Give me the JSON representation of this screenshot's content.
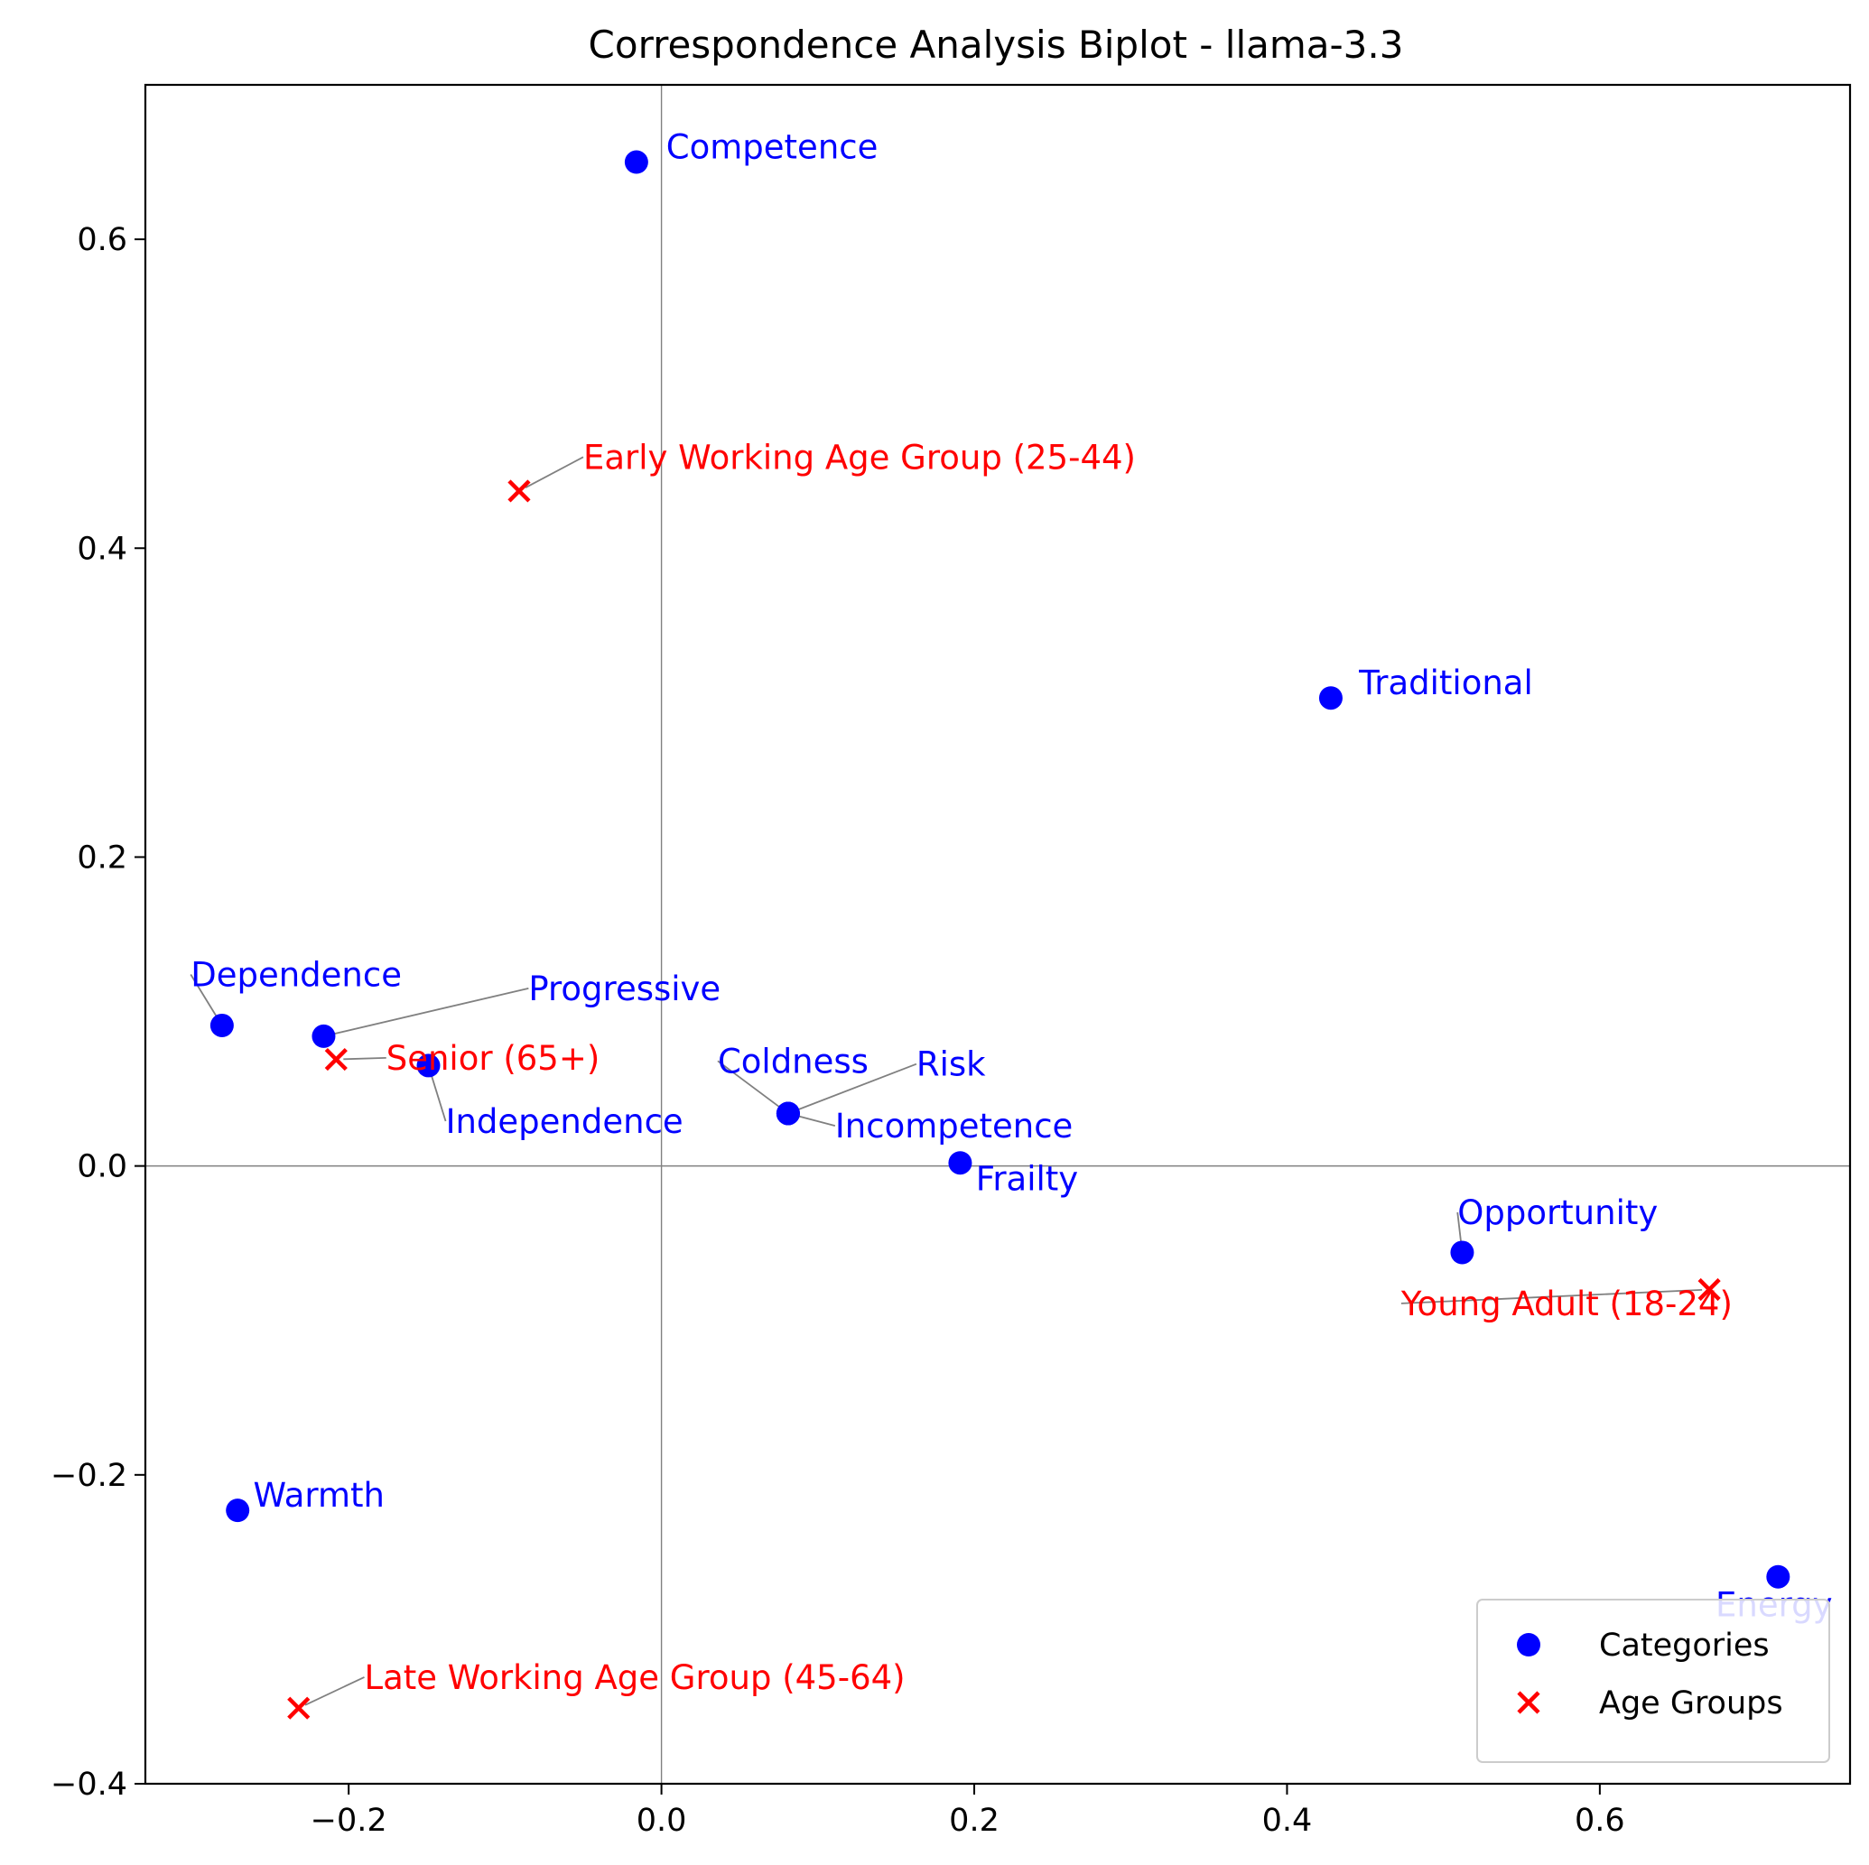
{
  "chart_data": {
    "type": "scatter",
    "title": "Correspondence Analysis Biplot - llama-3.3",
    "xlabel": "",
    "ylabel": "",
    "xlim": [
      -0.33,
      0.76
    ],
    "ylim": [
      -0.4,
      0.7
    ],
    "x_ticks": [
      {
        "value": -0.2,
        "label": "−0.2"
      },
      {
        "value": 0.0,
        "label": "0.0"
      },
      {
        "value": 0.2,
        "label": "0.2"
      },
      {
        "value": 0.4,
        "label": "0.4"
      },
      {
        "value": 0.6,
        "label": "0.6"
      }
    ],
    "y_ticks": [
      {
        "value": -0.4,
        "label": "−0.4"
      },
      {
        "value": -0.2,
        "label": "−0.2"
      },
      {
        "value": 0.0,
        "label": "0.0"
      },
      {
        "value": 0.2,
        "label": "0.2"
      },
      {
        "value": 0.4,
        "label": "0.4"
      },
      {
        "value": 0.6,
        "label": "0.6"
      }
    ],
    "reference_lines": {
      "x": 0,
      "y": 0
    },
    "grid": false,
    "legend": {
      "placement": "bottom-right"
    },
    "series": [
      {
        "name": "Categories",
        "marker": "circle",
        "color": "#0000ff",
        "points": [
          {
            "label": "Competence",
            "x": -0.016,
            "y": 0.65,
            "text_x": 0.003,
            "text_y": 0.66,
            "leader": false
          },
          {
            "label": "Traditional",
            "x": 0.428,
            "y": 0.303,
            "text_x": 0.446,
            "text_y": 0.313,
            "leader": false
          },
          {
            "label": "Dependence",
            "x": -0.281,
            "y": 0.091,
            "text_x": -0.301,
            "text_y": 0.124,
            "leader": true
          },
          {
            "label": "Progressive",
            "x": -0.216,
            "y": 0.084,
            "text_x": -0.085,
            "text_y": 0.115,
            "leader": true
          },
          {
            "label": "Independence",
            "x": -0.149,
            "y": 0.065,
            "text_x": -0.138,
            "text_y": 0.029,
            "leader": true
          },
          {
            "label": "Coldness",
            "x": 0.081,
            "y": 0.034,
            "text_x": 0.036,
            "text_y": 0.068,
            "leader": true
          },
          {
            "label": "Risk",
            "x": 0.081,
            "y": 0.034,
            "text_x": 0.163,
            "text_y": 0.066,
            "leader": true
          },
          {
            "label": "Incompetence",
            "x": 0.081,
            "y": 0.034,
            "text_x": 0.111,
            "text_y": 0.026,
            "leader": true
          },
          {
            "label": "Frailty",
            "x": 0.191,
            "y": 0.002,
            "text_x": 0.201,
            "text_y": -0.008,
            "leader": false
          },
          {
            "label": "Opportunity",
            "x": 0.512,
            "y": -0.056,
            "text_x": 0.509,
            "text_y": -0.03,
            "leader": true
          },
          {
            "label": "Energy",
            "x": 0.714,
            "y": -0.266,
            "text_x": 0.674,
            "text_y": -0.284,
            "leader": false
          },
          {
            "label": "Warmth",
            "x": -0.271,
            "y": -0.223,
            "text_x": -0.261,
            "text_y": -0.213,
            "leader": false
          }
        ]
      },
      {
        "name": "Age Groups",
        "marker": "x",
        "color": "#ff0000",
        "points": [
          {
            "label": "Early Working Age Group (25-44)",
            "x": -0.091,
            "y": 0.437,
            "text_x": -0.05,
            "text_y": 0.459,
            "leader": true
          },
          {
            "label": "Senior (65+)",
            "x": -0.208,
            "y": 0.069,
            "text_x": -0.176,
            "text_y": 0.07,
            "leader": true
          },
          {
            "label": "Young Adult (18-24)",
            "x": 0.67,
            "y": -0.08,
            "text_x": 0.473,
            "text_y": -0.089,
            "leader": true
          },
          {
            "label": "Late Working Age Group (45-64)",
            "x": -0.232,
            "y": -0.351,
            "text_x": -0.19,
            "text_y": -0.331,
            "leader": true
          }
        ]
      }
    ]
  }
}
